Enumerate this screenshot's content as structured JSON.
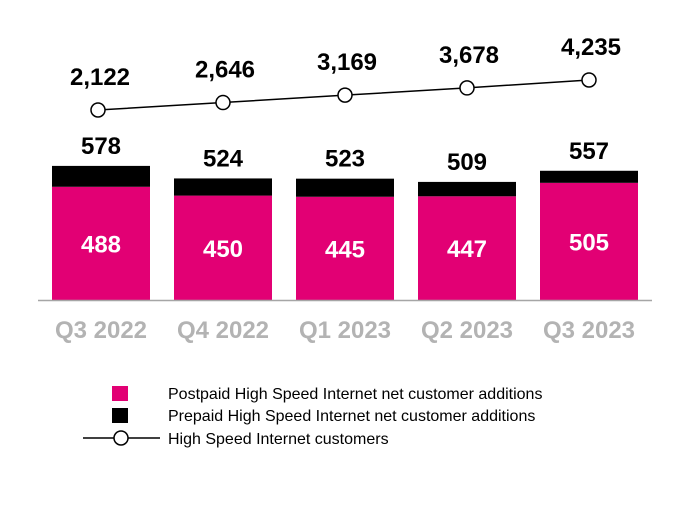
{
  "chart_data": {
    "type": "bar",
    "stacked": true,
    "categories": [
      "Q3 2022",
      "Q4 2022",
      "Q1 2023",
      "Q2 2023",
      "Q3 2023"
    ],
    "series": [
      {
        "name": "Postpaid High Speed Internet net customer additions",
        "type": "bar",
        "color": "#E20074",
        "values": [
          488,
          450,
          445,
          447,
          505
        ]
      },
      {
        "name": "Prepaid High Speed Internet net customer additions",
        "type": "bar",
        "color": "#000000",
        "values": [
          90,
          74,
          78,
          62,
          52
        ]
      },
      {
        "name": "High Speed Internet customers",
        "type": "line",
        "color": "#000000",
        "marker": "open-circle",
        "values": [
          2122,
          2646,
          3169,
          3678,
          4235
        ]
      }
    ],
    "bar_total_labels": [
      "578",
      "524",
      "523",
      "509",
      "557"
    ],
    "postpaid_labels": [
      "488",
      "450",
      "445",
      "447",
      "505"
    ],
    "line_labels": [
      "2,122",
      "2,646",
      "3,169",
      "3,678",
      "4,235"
    ],
    "title": "",
    "xlabel": "",
    "ylabel": "",
    "grid": false,
    "legend_placement": "bottom",
    "category_label_color": "#B3B3B3"
  }
}
